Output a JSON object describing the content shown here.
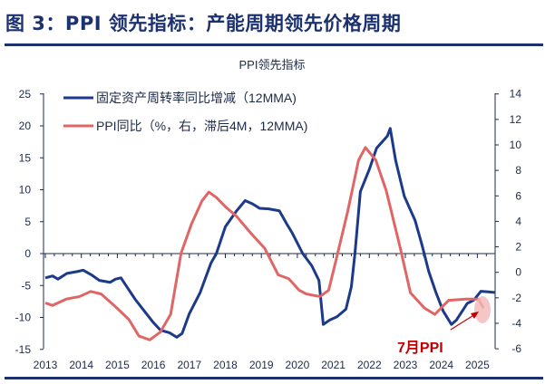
{
  "figure_title": "图 3：PPI 领先指标：产能周期领先价格周期",
  "chart_data": {
    "type": "line",
    "title": "PPI领先指标",
    "xlabel": "",
    "ylabel": "",
    "x_ticks": [
      "2013",
      "2014",
      "2015",
      "2016",
      "2017",
      "2018",
      "2019",
      "2020",
      "2021",
      "2022",
      "2023",
      "2024",
      "2025"
    ],
    "ylim_left": [
      -15,
      25
    ],
    "yticks_left": [
      "25",
      "20",
      "15",
      "10",
      "5",
      "0",
      "-5",
      "-10",
      "-15"
    ],
    "ylim_right": [
      -6,
      14
    ],
    "yticks_right": [
      "14",
      "12",
      "10",
      "8",
      "6",
      "4",
      "2",
      "0",
      "-2",
      "-4",
      "-6"
    ],
    "legend_position": "top-left",
    "series": [
      {
        "name": "固定资产周转率同比增减（12MMA)",
        "axis": "left",
        "color": "#1c3a8a",
        "points": [
          [
            2013.0,
            -3.8
          ],
          [
            2013.2,
            -3.5
          ],
          [
            2013.35,
            -4.0
          ],
          [
            2013.6,
            -3.1
          ],
          [
            2013.9,
            -2.8
          ],
          [
            2014.05,
            -2.6
          ],
          [
            2014.3,
            -3.4
          ],
          [
            2014.5,
            -4.2
          ],
          [
            2014.8,
            -4.5
          ],
          [
            2014.95,
            -4.0
          ],
          [
            2015.1,
            -3.8
          ],
          [
            2015.3,
            -5.5
          ],
          [
            2015.5,
            -7.2
          ],
          [
            2015.75,
            -9.0
          ],
          [
            2016.0,
            -10.8
          ],
          [
            2016.2,
            -12.0
          ],
          [
            2016.45,
            -12.4
          ],
          [
            2016.65,
            -13.1
          ],
          [
            2016.8,
            -12.5
          ],
          [
            2017.0,
            -9.4
          ],
          [
            2017.3,
            -6.1
          ],
          [
            2017.6,
            -1.5
          ],
          [
            2017.75,
            0
          ],
          [
            2018.0,
            4.2
          ],
          [
            2018.3,
            6.6
          ],
          [
            2018.55,
            8.3
          ],
          [
            2018.75,
            7.8
          ],
          [
            2018.95,
            7.1
          ],
          [
            2019.2,
            7.0
          ],
          [
            2019.5,
            6.7
          ],
          [
            2019.7,
            4.7
          ],
          [
            2019.85,
            3.3
          ],
          [
            2020.15,
            0
          ],
          [
            2020.4,
            -1.9
          ],
          [
            2020.6,
            -4.2
          ],
          [
            2020.72,
            -11.1
          ],
          [
            2020.9,
            -10.4
          ],
          [
            2021.1,
            -9.9
          ],
          [
            2021.35,
            -8.7
          ],
          [
            2021.5,
            -5.2
          ],
          [
            2021.6,
            0
          ],
          [
            2021.75,
            9.7
          ],
          [
            2022.0,
            13.2
          ],
          [
            2022.2,
            16.5
          ],
          [
            2022.5,
            18.4
          ],
          [
            2022.58,
            19.6
          ],
          [
            2022.73,
            14.6
          ],
          [
            2022.97,
            9.0
          ],
          [
            2023.27,
            5.2
          ],
          [
            2023.46,
            1.4
          ],
          [
            2023.65,
            -2.8
          ],
          [
            2023.85,
            -6.1
          ],
          [
            2024.05,
            -9.0
          ],
          [
            2024.28,
            -11.1
          ],
          [
            2024.42,
            -10.4
          ],
          [
            2024.72,
            -7.8
          ],
          [
            2024.9,
            -7.3
          ],
          [
            2025.1,
            -5.9
          ],
          [
            2025.3,
            -6.0
          ],
          [
            2025.5,
            -6.1
          ],
          [
            2025.8,
            -5.2
          ],
          [
            2026.05,
            -5.9
          ]
        ]
      },
      {
        "name": "PPI同比（%，右，滞后4M，12MMA)",
        "axis": "right",
        "color": "#e06666",
        "points": [
          [
            2013.0,
            -2.4
          ],
          [
            2013.2,
            -2.6
          ],
          [
            2013.58,
            -2.1
          ],
          [
            2013.95,
            -1.9
          ],
          [
            2014.26,
            -1.5
          ],
          [
            2014.55,
            -1.7
          ],
          [
            2014.95,
            -2.7
          ],
          [
            2015.32,
            -3.7
          ],
          [
            2015.6,
            -5.0
          ],
          [
            2015.9,
            -5.3
          ],
          [
            2016.19,
            -4.7
          ],
          [
            2016.48,
            -3.3
          ],
          [
            2016.77,
            1.5
          ],
          [
            2017.06,
            3.8
          ],
          [
            2017.35,
            5.6
          ],
          [
            2017.54,
            6.3
          ],
          [
            2017.74,
            5.9
          ],
          [
            2018.02,
            5.1
          ],
          [
            2018.31,
            4.4
          ],
          [
            2018.7,
            3.1
          ],
          [
            2019.09,
            1.9
          ],
          [
            2019.47,
            -0.2
          ],
          [
            2019.76,
            -0.5
          ],
          [
            2020.05,
            -1.4
          ],
          [
            2020.25,
            -1.7
          ],
          [
            2020.63,
            -1.9
          ],
          [
            2020.87,
            -1.4
          ],
          [
            2021.07,
            0.9
          ],
          [
            2021.4,
            4.8
          ],
          [
            2021.7,
            8.8
          ],
          [
            2021.89,
            9.8
          ],
          [
            2022.18,
            8.8
          ],
          [
            2022.47,
            6.4
          ],
          [
            2022.86,
            1.9
          ],
          [
            2023.14,
            -1.6
          ],
          [
            2023.53,
            -2.8
          ],
          [
            2023.82,
            -3.3
          ],
          [
            2024.2,
            -2.2
          ],
          [
            2024.68,
            -2.1
          ],
          [
            2025.03,
            -2.1
          ],
          [
            2025.17,
            -2.8
          ]
        ]
      }
    ],
    "annotation": "7月PPI"
  }
}
